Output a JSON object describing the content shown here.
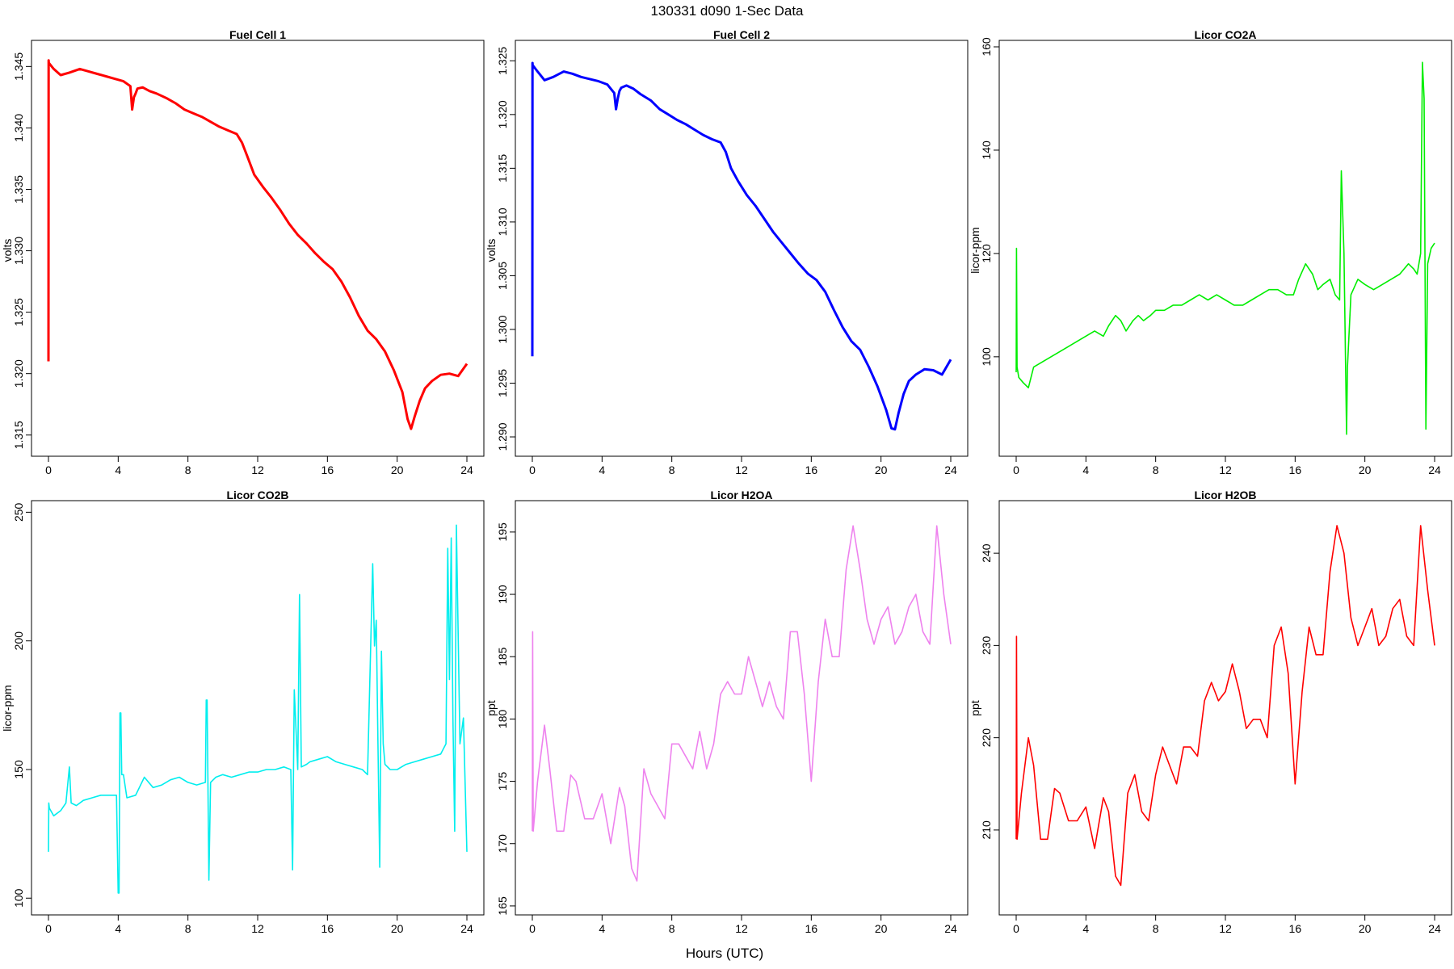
{
  "suptitle": "130331    d090    1-Sec Data",
  "xlabel": "Hours (UTC)",
  "chart_data": [
    {
      "type": "line",
      "title": "Fuel Cell 1",
      "ylabel": "volts",
      "color": "#ff0000",
      "xlim": [
        0,
        24
      ],
      "ylim": [
        1.3138,
        1.3466
      ],
      "xticks": [
        0,
        4,
        8,
        12,
        16,
        20,
        24
      ],
      "xtick_labels": [
        "0",
        "4",
        "8",
        "12",
        "16",
        "20",
        "24"
      ],
      "yticks": [
        1.315,
        1.32,
        1.325,
        1.33,
        1.335,
        1.34,
        1.345
      ],
      "ytick_labels": [
        "1.315",
        "1.320",
        "1.325",
        "1.330",
        "1.335",
        "1.340",
        "1.345"
      ],
      "series": [
        {
          "x": [
            0,
            0.01,
            0.02,
            0.3,
            0.7,
            1.2,
            1.8,
            2.3,
            2.8,
            3.3,
            3.8,
            4.3,
            4.7,
            4.8,
            4.9,
            5.0,
            5.1,
            5.4,
            5.8,
            6.2,
            6.8,
            7.3,
            7.8,
            8.3,
            8.8,
            9.3,
            9.8,
            10.3,
            10.8,
            11.1,
            11.4,
            11.8,
            12.3,
            12.8,
            13.3,
            13.8,
            14.3,
            14.8,
            15.3,
            15.8,
            16.3,
            16.8,
            17.3,
            17.8,
            18.3,
            18.8,
            19.3,
            19.8,
            20.3,
            20.6,
            20.8,
            21.0,
            21.3,
            21.6,
            22.0,
            22.5,
            23.0,
            23.5,
            24.0
          ],
          "y": [
            1.321,
            1.3455,
            1.3453,
            1.3448,
            1.3443,
            1.3445,
            1.3448,
            1.3446,
            1.3444,
            1.3442,
            1.344,
            1.3438,
            1.3434,
            1.3415,
            1.3425,
            1.3428,
            1.3432,
            1.3433,
            1.343,
            1.3428,
            1.3424,
            1.342,
            1.3415,
            1.3412,
            1.3409,
            1.3405,
            1.3401,
            1.3398,
            1.3395,
            1.3388,
            1.3377,
            1.3362,
            1.3352,
            1.3343,
            1.3333,
            1.3322,
            1.3313,
            1.3306,
            1.3298,
            1.3291,
            1.3285,
            1.3275,
            1.3262,
            1.3247,
            1.3235,
            1.3228,
            1.3218,
            1.3203,
            1.3185,
            1.3163,
            1.3155,
            1.3165,
            1.3178,
            1.3188,
            1.3194,
            1.3199,
            1.32,
            1.3198,
            1.3208
          ]
        }
      ]
    },
    {
      "type": "line",
      "title": "Fuel Cell 2",
      "ylabel": "volts",
      "color": "#0000ff",
      "xlim": [
        0,
        24
      ],
      "ylim": [
        1.2888,
        1.3263
      ],
      "xticks": [
        0,
        4,
        8,
        12,
        16,
        20,
        24
      ],
      "xtick_labels": [
        "0",
        "4",
        "8",
        "12",
        "16",
        "20",
        "24"
      ],
      "yticks": [
        1.29,
        1.295,
        1.3,
        1.305,
        1.31,
        1.315,
        1.32,
        1.325
      ],
      "ytick_labels": [
        "1.290",
        "1.295",
        "1.300",
        "1.305",
        "1.310",
        "1.315",
        "1.320",
        "1.325"
      ],
      "series": [
        {
          "x": [
            0,
            0.01,
            0.02,
            0.3,
            0.7,
            1.2,
            1.8,
            2.3,
            2.8,
            3.3,
            3.8,
            4.3,
            4.7,
            4.8,
            4.9,
            5.0,
            5.1,
            5.4,
            5.8,
            6.2,
            6.8,
            7.3,
            7.8,
            8.3,
            8.8,
            9.3,
            9.8,
            10.3,
            10.8,
            11.1,
            11.4,
            11.8,
            12.3,
            12.8,
            13.3,
            13.8,
            14.3,
            14.8,
            15.3,
            15.8,
            16.3,
            16.8,
            17.3,
            17.8,
            18.3,
            18.8,
            19.3,
            19.8,
            20.3,
            20.6,
            20.8,
            21.0,
            21.3,
            21.6,
            22.0,
            22.5,
            23.0,
            23.5,
            24.0
          ],
          "y": [
            1.2975,
            1.3248,
            1.3246,
            1.324,
            1.3232,
            1.3235,
            1.324,
            1.3238,
            1.3235,
            1.3233,
            1.3231,
            1.3228,
            1.322,
            1.3205,
            1.3215,
            1.3222,
            1.3225,
            1.3227,
            1.3224,
            1.3219,
            1.3213,
            1.3205,
            1.32,
            1.3195,
            1.3191,
            1.3186,
            1.3181,
            1.3177,
            1.3174,
            1.3165,
            1.315,
            1.3138,
            1.3125,
            1.3115,
            1.3103,
            1.3091,
            1.3081,
            1.3071,
            1.3061,
            1.3052,
            1.3046,
            1.3035,
            1.3018,
            1.3002,
            1.2989,
            1.2981,
            1.2965,
            1.2947,
            1.2925,
            1.2908,
            1.2907,
            1.2922,
            1.294,
            1.2952,
            1.2958,
            1.2963,
            1.2962,
            1.2958,
            1.2972
          ]
        }
      ]
    },
    {
      "type": "line",
      "title": "Licor CO2A",
      "ylabel": "licor-ppm",
      "color": "#00ee00",
      "xlim": [
        0,
        24
      ],
      "ylim": [
        82,
        160
      ],
      "xticks": [
        0,
        4,
        8,
        12,
        16,
        20,
        24
      ],
      "xtick_labels": [
        "0",
        "4",
        "8",
        "12",
        "16",
        "20",
        "24"
      ],
      "yticks": [
        100,
        120,
        140,
        160
      ],
      "ytick_labels": [
        "100",
        "120",
        "140",
        "160"
      ],
      "series": [
        {
          "x": [
            0,
            0.02,
            0.05,
            0.15,
            0.4,
            0.7,
            1.0,
            1.5,
            2.0,
            2.5,
            3.0,
            3.5,
            4.0,
            4.5,
            5.0,
            5.3,
            5.7,
            6.0,
            6.3,
            6.7,
            7.0,
            7.3,
            7.7,
            8.0,
            8.5,
            9.0,
            9.5,
            10.0,
            10.5,
            11.0,
            11.5,
            12.0,
            12.5,
            13.0,
            13.5,
            14.0,
            14.5,
            15.0,
            15.5,
            15.9,
            16.2,
            16.6,
            17.0,
            17.3,
            17.6,
            18.0,
            18.3,
            18.55,
            18.65,
            18.8,
            18.95,
            19.0,
            19.2,
            19.6,
            20.0,
            20.5,
            21.0,
            21.5,
            22.0,
            22.5,
            22.8,
            23.0,
            23.2,
            23.3,
            23.4,
            23.5,
            23.6,
            23.8,
            24.0
          ],
          "y": [
            97,
            121,
            98,
            96,
            95,
            94,
            98,
            99,
            100,
            101,
            102,
            103,
            104,
            105,
            104,
            106,
            108,
            107,
            105,
            107,
            108,
            107,
            108,
            109,
            109,
            110,
            110,
            111,
            112,
            111,
            112,
            111,
            110,
            110,
            111,
            112,
            113,
            113,
            112,
            112,
            115,
            118,
            116,
            113,
            114,
            115,
            112,
            111,
            136,
            120,
            85,
            98,
            112,
            115,
            114,
            113,
            114,
            115,
            116,
            118,
            117,
            116,
            120,
            157,
            150,
            86,
            118,
            121,
            122
          ]
        }
      ]
    },
    {
      "type": "line",
      "title": "Licor CO2B",
      "ylabel": "licor-ppm",
      "color": "#00eeee",
      "xlim": [
        0,
        24
      ],
      "ylim": [
        96,
        252
      ],
      "xticks": [
        0,
        4,
        8,
        12,
        16,
        20,
        24
      ],
      "xtick_labels": [
        "0",
        "4",
        "8",
        "12",
        "16",
        "20",
        "24"
      ],
      "yticks": [
        100,
        150,
        200,
        250
      ],
      "ytick_labels": [
        "100",
        "150",
        "200",
        "250"
      ],
      "series": [
        {
          "x": [
            0,
            0.02,
            0.05,
            0.3,
            0.7,
            1.0,
            1.2,
            1.3,
            1.6,
            2.0,
            2.5,
            3.0,
            3.5,
            3.9,
            4.0,
            4.05,
            4.1,
            4.15,
            4.2,
            4.3,
            4.5,
            5.0,
            5.5,
            6.0,
            6.5,
            7.0,
            7.5,
            8.0,
            8.5,
            9.0,
            9.05,
            9.1,
            9.2,
            9.3,
            9.6,
            10.0,
            10.5,
            11.0,
            11.5,
            12.0,
            12.5,
            13.0,
            13.5,
            13.9,
            14.0,
            14.1,
            14.3,
            14.4,
            14.5,
            14.8,
            15.0,
            15.5,
            16.0,
            16.5,
            17.0,
            17.5,
            18.0,
            18.3,
            18.6,
            18.7,
            18.8,
            18.9,
            19.0,
            19.1,
            19.2,
            19.3,
            19.6,
            20.0,
            20.5,
            21.0,
            21.5,
            22.0,
            22.5,
            22.8,
            22.9,
            23.0,
            23.1,
            23.2,
            23.3,
            23.4,
            23.6,
            23.8,
            24.0
          ],
          "y": [
            118,
            137,
            135,
            132,
            134,
            137,
            151,
            137,
            136,
            138,
            139,
            140,
            140,
            140,
            102,
            102,
            172,
            172,
            148,
            148,
            139,
            140,
            147,
            143,
            144,
            146,
            147,
            145,
            144,
            145,
            177,
            177,
            107,
            145,
            147,
            148,
            147,
            148,
            149,
            149,
            150,
            150,
            151,
            150,
            111,
            181,
            150,
            218,
            151,
            152,
            153,
            154,
            155,
            153,
            152,
            151,
            150,
            148,
            230,
            198,
            208,
            160,
            112,
            196,
            160,
            152,
            150,
            150,
            152,
            153,
            154,
            155,
            156,
            160,
            236,
            185,
            240,
            170,
            126,
            245,
            160,
            170,
            118
          ]
        }
      ]
    },
    {
      "type": "line",
      "title": "Licor H2OA",
      "ylabel": "ppt",
      "color": "#ee82ee",
      "xlim": [
        0,
        24
      ],
      "ylim": [
        164.8,
        197
      ],
      "xticks": [
        0,
        4,
        8,
        12,
        16,
        20,
        24
      ],
      "xtick_labels": [
        "0",
        "4",
        "8",
        "12",
        "16",
        "20",
        "24"
      ],
      "yticks": [
        165,
        170,
        175,
        180,
        185,
        190,
        195
      ],
      "ytick_labels": [
        "165",
        "170",
        "175",
        "180",
        "185",
        "190",
        "195"
      ],
      "series": [
        {
          "x": [
            0,
            0.02,
            0.05,
            0.3,
            0.7,
            1.0,
            1.4,
            1.8,
            2.2,
            2.5,
            3.0,
            3.5,
            4.0,
            4.5,
            5.0,
            5.3,
            5.7,
            6.0,
            6.4,
            6.8,
            7.2,
            7.6,
            8.0,
            8.4,
            8.8,
            9.2,
            9.6,
            10.0,
            10.4,
            10.8,
            11.2,
            11.6,
            12.0,
            12.4,
            12.8,
            13.2,
            13.6,
            14.0,
            14.4,
            14.8,
            15.2,
            15.6,
            16.0,
            16.4,
            16.8,
            17.2,
            17.6,
            18.0,
            18.4,
            18.8,
            19.2,
            19.6,
            20.0,
            20.4,
            20.8,
            21.2,
            21.6,
            22.0,
            22.4,
            22.8,
            23.2,
            23.6,
            24.0
          ],
          "y": [
            171,
            187,
            171,
            175,
            179.5,
            176,
            171,
            171,
            175.5,
            175,
            172,
            172,
            174,
            170,
            174.5,
            173,
            168,
            167,
            176,
            174,
            173,
            172,
            178,
            178,
            177,
            176,
            179,
            176,
            178,
            182,
            183,
            182,
            182,
            185,
            183,
            181,
            183,
            181,
            180,
            187,
            187,
            182,
            175,
            183,
            188,
            185,
            185,
            192,
            195.5,
            192,
            188,
            186,
            188,
            189,
            186,
            187,
            189,
            190,
            187,
            186,
            195.5,
            190,
            186
          ]
        }
      ]
    },
    {
      "type": "line",
      "title": "Licor H2OB",
      "ylabel": "ppt",
      "color": "#ff0000",
      "xlim": [
        0,
        24
      ],
      "ylim": [
        201.5,
        245
      ],
      "xticks": [
        0,
        4,
        8,
        12,
        16,
        20,
        24
      ],
      "xtick_labels": [
        "0",
        "4",
        "8",
        "12",
        "16",
        "20",
        "24"
      ],
      "yticks": [
        210,
        220,
        230,
        240
      ],
      "ytick_labels": [
        "210",
        "220",
        "230",
        "240"
      ],
      "series": [
        {
          "x": [
            0,
            0.02,
            0.05,
            0.3,
            0.7,
            1.0,
            1.4,
            1.8,
            2.2,
            2.5,
            3.0,
            3.5,
            4.0,
            4.5,
            5.0,
            5.3,
            5.7,
            6.0,
            6.4,
            6.8,
            7.2,
            7.6,
            8.0,
            8.4,
            8.8,
            9.2,
            9.6,
            10.0,
            10.4,
            10.8,
            11.2,
            11.6,
            12.0,
            12.4,
            12.8,
            13.2,
            13.6,
            14.0,
            14.4,
            14.8,
            15.2,
            15.6,
            16.0,
            16.4,
            16.8,
            17.2,
            17.6,
            18.0,
            18.4,
            18.8,
            19.2,
            19.6,
            20.0,
            20.4,
            20.8,
            21.2,
            21.6,
            22.0,
            22.4,
            22.8,
            23.2,
            23.6,
            24.0
          ],
          "y": [
            209,
            231,
            209,
            214,
            220,
            217,
            209,
            209,
            214.5,
            214,
            211,
            211,
            212.5,
            208,
            213.5,
            212,
            205,
            204,
            214,
            216,
            212,
            211,
            216,
            219,
            217,
            215,
            219,
            219,
            218,
            224,
            226,
            224,
            225,
            228,
            225,
            221,
            222,
            222,
            220,
            230,
            232,
            227,
            215,
            225,
            232,
            229,
            229,
            238,
            243,
            240,
            233,
            230,
            232,
            234,
            230,
            231,
            234,
            235,
            231,
            230,
            243,
            236,
            230
          ]
        }
      ]
    }
  ]
}
